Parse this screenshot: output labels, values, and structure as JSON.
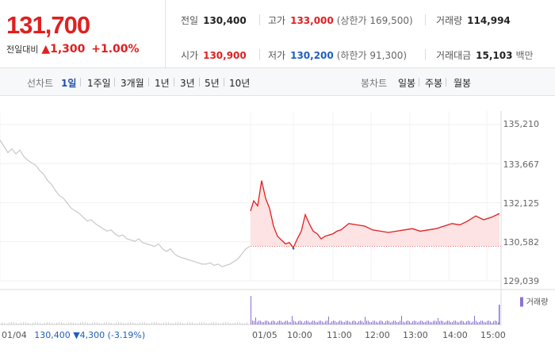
{
  "price": {
    "current": "131,700",
    "change_label": "전일대비",
    "change_arrow": "▲",
    "change_value": "1,300",
    "change_pct": "+1.00%"
  },
  "stats": {
    "prev_close": {
      "label": "전일",
      "value": "130,400"
    },
    "high": {
      "label": "고가",
      "value": "133,000",
      "sub": "(상한가 169,500)"
    },
    "volume": {
      "label": "거래량",
      "value": "114,994"
    },
    "open": {
      "label": "시가",
      "value": "130,900"
    },
    "low": {
      "label": "저가",
      "value": "130,200",
      "sub": "(하한가 91,300)"
    },
    "amount": {
      "label": "거래대금",
      "value": "15,103",
      "unit": "백만"
    }
  },
  "toolbar": {
    "line_label": "선차트",
    "ranges": [
      "1일",
      "1주일",
      "3개월",
      "1년",
      "3년",
      "5년",
      "10년"
    ],
    "active_range": "1일",
    "candle_label": "봉차트",
    "candle_ranges": [
      "일봉",
      "주봉",
      "월봉"
    ]
  },
  "chart_data": {
    "type": "line",
    "y_ticks": [
      "135,210",
      "133,667",
      "132,125",
      "130,582",
      "129,039"
    ],
    "x_ticks": [
      "01/04",
      "01/05",
      "10:00",
      "11:00",
      "12:00",
      "13:00",
      "14:00",
      "15:00"
    ],
    "ylim": [
      129039,
      135210
    ],
    "baseline": 130400,
    "previous_day": {
      "date": "01/04",
      "close": "130,400",
      "change_arrow": "▼",
      "change": "4,300",
      "change_pct": "(-3.19%)",
      "x": [
        0,
        5,
        10,
        15,
        20,
        25,
        30,
        35,
        40,
        45,
        50,
        55,
        60,
        65,
        70,
        75,
        80,
        85,
        90,
        95,
        100,
        105,
        110,
        115,
        120,
        125,
        130,
        135,
        140,
        145,
        150,
        155,
        160,
        165,
        170,
        175,
        180,
        185,
        190,
        195,
        200,
        205,
        210,
        215,
        220,
        225,
        230,
        235,
        240,
        245,
        250,
        255,
        260,
        265,
        270,
        275,
        280,
        285,
        290,
        295,
        300,
        305,
        310,
        315
      ],
      "values": [
        134600,
        134350,
        134100,
        134250,
        134050,
        134200,
        133950,
        133800,
        133700,
        133600,
        133400,
        133250,
        133000,
        132850,
        132600,
        132400,
        132300,
        132100,
        131900,
        131800,
        131700,
        131550,
        131400,
        131450,
        131300,
        131200,
        131100,
        131000,
        131050,
        130900,
        130800,
        130850,
        130700,
        130650,
        130600,
        130700,
        130550,
        130500,
        130450,
        130400,
        130500,
        130300,
        130200,
        130300,
        130100,
        130000,
        129950,
        129900,
        129850,
        129800,
        129750,
        129700,
        129700,
        129750,
        129650,
        129700,
        129600,
        129650,
        129700,
        129800,
        129900,
        130100,
        130300,
        130400
      ]
    },
    "today": {
      "date": "01/05",
      "x": [
        316,
        320,
        325,
        330,
        335,
        340,
        345,
        350,
        355,
        360,
        365,
        370,
        375,
        380,
        385,
        390,
        395,
        400,
        405,
        410,
        415,
        420,
        425,
        430,
        440,
        450,
        460,
        470,
        480,
        490,
        500,
        510,
        520,
        530,
        540,
        550,
        560,
        570,
        580,
        590,
        600,
        610,
        620,
        630
      ],
      "values": [
        131800,
        132200,
        132000,
        133000,
        132300,
        131900,
        131200,
        130800,
        130650,
        130500,
        130550,
        130350,
        130700,
        131000,
        131650,
        131300,
        131000,
        130900,
        130700,
        130800,
        130850,
        130900,
        131000,
        131050,
        131300,
        131250,
        131200,
        131050,
        131000,
        130950,
        131000,
        131050,
        131100,
        131000,
        131050,
        131100,
        131200,
        131300,
        131250,
        131400,
        131600,
        131450,
        131550,
        131700
      ]
    },
    "volume_label": "거래량"
  },
  "colors": {
    "up": "#e02020",
    "down": "#1f5fbf",
    "prev_line": "#c8c8c8",
    "area": "#fde3e3"
  }
}
